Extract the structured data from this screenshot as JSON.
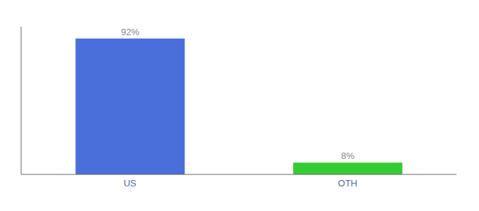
{
  "chart_data": {
    "type": "bar",
    "categories": [
      "US",
      "OTH"
    ],
    "values": [
      92,
      8
    ],
    "value_labels": [
      "92%",
      "8%"
    ],
    "colors": [
      "#4a6fdb",
      "#33cc33"
    ],
    "ylim": [
      0,
      100
    ],
    "data_labels": true,
    "tick_labels": "x",
    "grid": false
  }
}
